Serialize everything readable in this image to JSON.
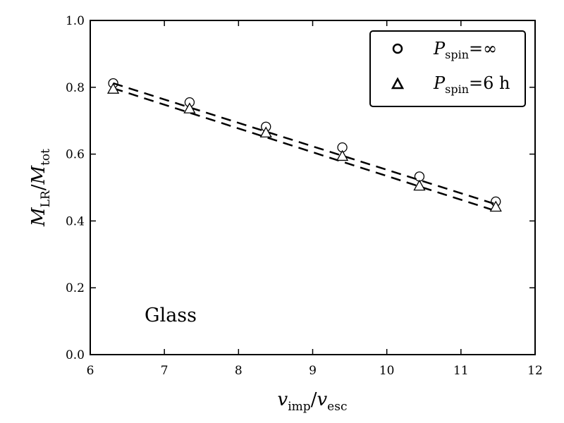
{
  "chart_data": {
    "type": "scatter",
    "xlabel": {
      "var": "v",
      "sub": "imp",
      "sep": "/",
      "var2": "v",
      "sub2": "esc"
    },
    "ylabel": {
      "var": "M",
      "sub": "LR",
      "sep": "/",
      "var2": "M",
      "sub2": "tot"
    },
    "xlim": [
      6,
      12
    ],
    "ylim": [
      0.0,
      1.0
    ],
    "x_ticks": [
      "6",
      "7",
      "8",
      "9",
      "10",
      "11",
      "12"
    ],
    "y_ticks": [
      "0.0",
      "0.2",
      "0.4",
      "0.6",
      "0.8",
      "1.0"
    ],
    "annotation": "Glass",
    "legend_position": "top-right",
    "series": [
      {
        "name": {
          "var": "P",
          "sub": "spin",
          "rest": "=∞"
        },
        "marker": "circle",
        "x": [
          6.31,
          7.34,
          8.37,
          9.4,
          10.44,
          11.47
        ],
        "y": [
          0.812,
          0.755,
          0.682,
          0.62,
          0.533,
          0.458
        ],
        "fit": [
          [
            6.31,
            0.812
          ],
          [
            11.47,
            0.45
          ]
        ]
      },
      {
        "name": {
          "var": "P",
          "sub": "spin",
          "rest": "=6 h"
        },
        "marker": "triangle",
        "x": [
          6.31,
          7.34,
          8.37,
          9.4,
          10.44,
          11.47
        ],
        "y": [
          0.795,
          0.736,
          0.664,
          0.594,
          0.505,
          0.442
        ],
        "fit": [
          [
            6.31,
            0.797
          ],
          [
            11.47,
            0.43
          ]
        ]
      }
    ]
  }
}
